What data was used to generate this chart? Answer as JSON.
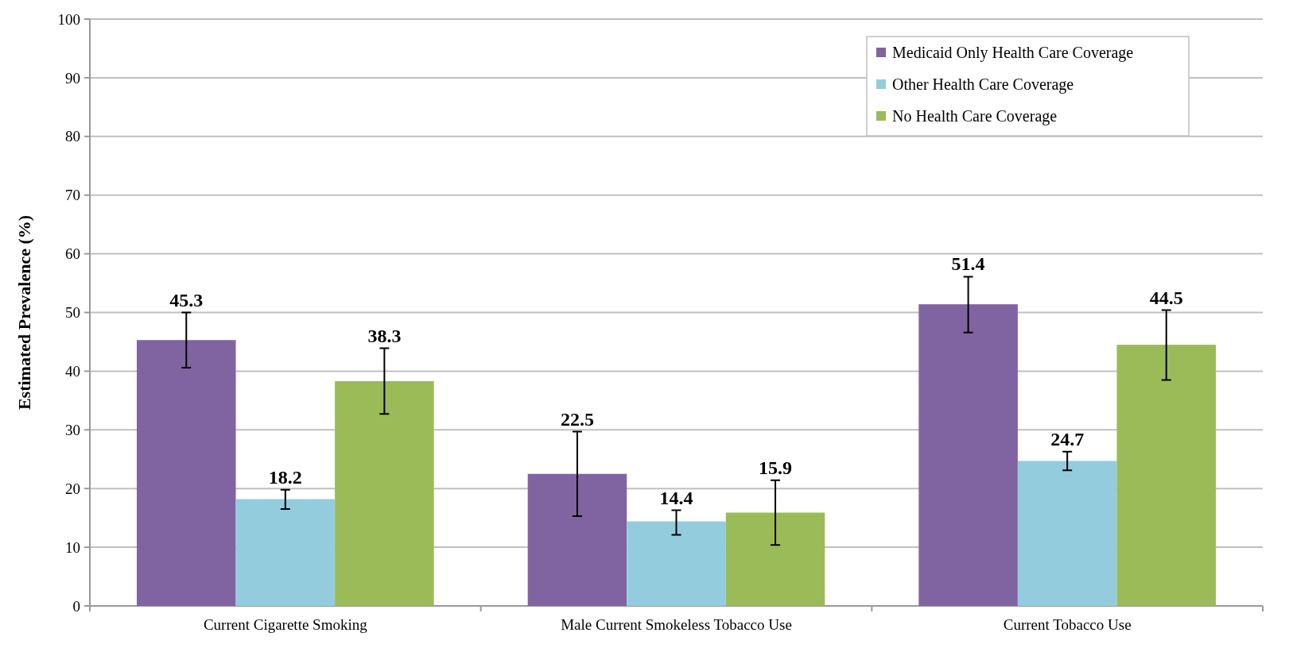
{
  "chart_data": {
    "type": "bar",
    "ylabel": "Estimated Prevalence  (%)",
    "categories": [
      "Current Cigarette Smoking",
      "Male Current Smokeless Tobacco Use",
      "Current Tobacco Use"
    ],
    "series": [
      {
        "name": "Medicaid Only Health Care Coverage",
        "color": "#8064a2",
        "values": [
          45.3,
          22.5,
          51.4
        ],
        "errors": [
          [
            40.6,
            50.0
          ],
          [
            15.3,
            29.7
          ],
          [
            46.6,
            56.1
          ]
        ]
      },
      {
        "name": "Other Health Care Coverage",
        "color": "#93cddd",
        "values": [
          18.2,
          14.4,
          24.7
        ],
        "errors": [
          [
            16.5,
            19.8
          ],
          [
            12.1,
            16.3
          ],
          [
            23.1,
            26.3
          ]
        ]
      },
      {
        "name": "No Health Care Coverage",
        "color": "#9bbb59",
        "values": [
          38.3,
          15.9,
          44.5
        ],
        "errors": [
          [
            32.7,
            43.9
          ],
          [
            10.4,
            21.4
          ],
          [
            38.5,
            50.4
          ]
        ]
      }
    ],
    "ylim": [
      0,
      100
    ],
    "yticks": [
      0,
      10,
      20,
      30,
      40,
      50,
      60,
      70,
      80,
      90,
      100
    ],
    "grid": "y",
    "legend": "top right",
    "data_labels": true
  }
}
